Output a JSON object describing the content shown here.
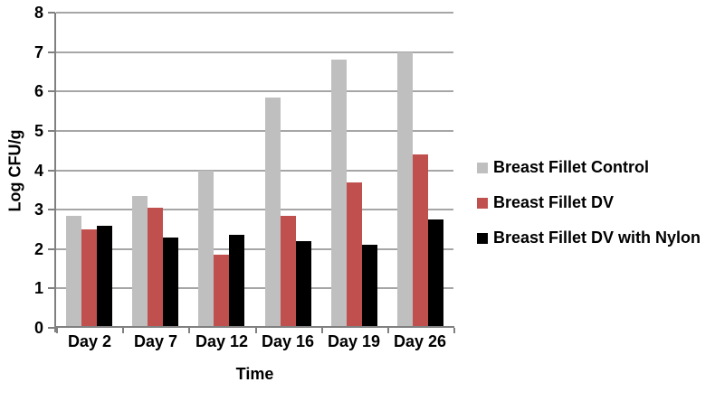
{
  "chart_data": {
    "type": "bar",
    "xlabel": "Time",
    "ylabel": "Log CFU/g",
    "ylim": [
      0,
      8
    ],
    "yticks": [
      0,
      1,
      2,
      3,
      4,
      5,
      6,
      7,
      8
    ],
    "grid": true,
    "legend_position": "right",
    "categories": [
      "Day 2",
      "Day 7",
      "Day 12",
      "Day 16",
      "Day 19",
      "Day 26"
    ],
    "series": [
      {
        "name": "Breast Fillet Control",
        "color": "#BFBFBF",
        "values": [
          2.85,
          3.35,
          4.0,
          5.85,
          6.8,
          7.0
        ]
      },
      {
        "name": "Breast Fillet DV",
        "color": "#C0504D",
        "values": [
          2.5,
          3.05,
          1.85,
          2.85,
          3.7,
          4.4
        ]
      },
      {
        "name": "Breast Fillet DV with Nylon",
        "color": "#000000",
        "values": [
          2.6,
          2.3,
          2.35,
          2.2,
          2.1,
          2.75
        ]
      }
    ]
  },
  "colors": {
    "gridline": "#A6A6A6",
    "axis": "#808080",
    "text": "#000000",
    "background": "#FFFFFF"
  }
}
